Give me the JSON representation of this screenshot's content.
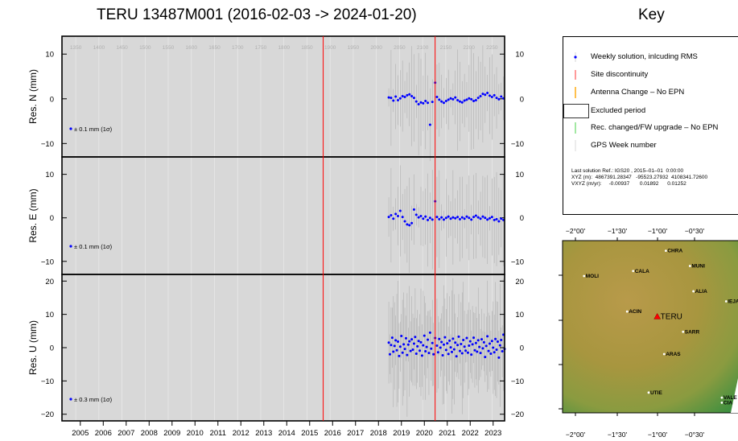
{
  "header": {
    "title": "TERU 13487M001 (2016-02-03 -> 2024-01-20)",
    "key_title": "Key"
  },
  "legend": {
    "items": [
      {
        "label": "Weekly solution, inlcuding RMS",
        "symbol": "dot",
        "color": "#0000ff"
      },
      {
        "label": "Site discontinuity",
        "symbol": "vline",
        "color": "#ff0000"
      },
      {
        "label": "Antenna Change – No EPN",
        "symbol": "vline",
        "color": "#ffa500"
      },
      {
        "label": "Excluded period",
        "symbol": "box",
        "color": "#000000"
      },
      {
        "label": "Rec. changed/FW upgrade – No EPN",
        "symbol": "vline",
        "color": "#33cc33"
      },
      {
        "label": "GPS Week number",
        "symbol": "vline",
        "color": "#c8c8c8"
      }
    ],
    "solution_line": "Last solution Ref.: IGS20 , 2015–01–01  0:00:00",
    "xyz_line": "XYZ (m):  4867391.28347   -95523.27932  4108341.72600",
    "vxyz_line": "VXYZ (m/yr):     -0.00937       0.01892      0.01252"
  },
  "chart_data": [
    {
      "type": "scatter",
      "title": "TERU 13487M001 (2016-02-03 -> 2024-01-20)",
      "xlabel": "",
      "years": [
        "2005",
        "2006",
        "2007",
        "2008",
        "2009",
        "2010",
        "2011",
        "2012",
        "2013",
        "2014",
        "2015",
        "2016",
        "2017",
        "2018",
        "2019",
        "2020",
        "2021",
        "2022",
        "2023"
      ],
      "xlim": [
        2004.7,
        2024.0
      ],
      "gps_weeks": [
        "1350",
        "1400",
        "1450",
        "1500",
        "1550",
        "1600",
        "1650",
        "1700",
        "1750",
        "1800",
        "1850",
        "1900",
        "1950",
        "2000",
        "2050",
        "2100",
        "2150",
        "2200",
        "2250"
      ],
      "discontinuities": [
        2016.09,
        2020.97
      ],
      "data_start": 2018.9,
      "data_end": 2024.05,
      "panels": [
        {
          "id": "N",
          "ylabel": "Res. N (mm)",
          "ylim": [
            -13,
            14
          ],
          "yticks": [
            "10",
            "0",
            "−10"
          ],
          "ytick_values": [
            10,
            0,
            -10
          ],
          "rms_label": "± 0.1 mm (1σ)",
          "points": [
            [
              2018.95,
              0.3
            ],
            [
              2019.05,
              0.2
            ],
            [
              2019.15,
              -0.4
            ],
            [
              2019.25,
              0.5
            ],
            [
              2019.35,
              -0.3
            ],
            [
              2019.45,
              0.1
            ],
            [
              2019.55,
              0.6
            ],
            [
              2019.65,
              0.4
            ],
            [
              2019.75,
              0.8
            ],
            [
              2019.85,
              1.0
            ],
            [
              2019.95,
              0.6
            ],
            [
              2020.05,
              0.2
            ],
            [
              2020.15,
              -0.6
            ],
            [
              2020.25,
              -1.2
            ],
            [
              2020.35,
              -0.8
            ],
            [
              2020.45,
              -1.0
            ],
            [
              2020.55,
              -0.5
            ],
            [
              2020.65,
              -0.9
            ],
            [
              2020.75,
              -5.8
            ],
            [
              2020.85,
              -0.7
            ],
            [
              2020.97,
              3.6
            ],
            [
              2021.05,
              0.4
            ],
            [
              2021.15,
              -0.2
            ],
            [
              2021.25,
              -0.6
            ],
            [
              2021.35,
              -0.9
            ],
            [
              2021.45,
              -0.5
            ],
            [
              2021.55,
              -0.2
            ],
            [
              2021.65,
              0.1
            ],
            [
              2021.75,
              -0.1
            ],
            [
              2021.85,
              0.3
            ],
            [
              2021.95,
              -0.3
            ],
            [
              2022.05,
              -0.6
            ],
            [
              2022.15,
              -0.8
            ],
            [
              2022.25,
              -0.4
            ],
            [
              2022.35,
              -0.2
            ],
            [
              2022.45,
              0.1
            ],
            [
              2022.55,
              -0.1
            ],
            [
              2022.65,
              -0.5
            ],
            [
              2022.75,
              -0.3
            ],
            [
              2022.85,
              0.2
            ],
            [
              2022.95,
              0.6
            ],
            [
              2023.05,
              1.1
            ],
            [
              2023.15,
              0.9
            ],
            [
              2023.25,
              1.3
            ],
            [
              2023.35,
              0.7
            ],
            [
              2023.45,
              0.4
            ],
            [
              2023.55,
              0.8
            ],
            [
              2023.65,
              0.2
            ],
            [
              2023.75,
              -0.1
            ],
            [
              2023.85,
              0.5
            ],
            [
              2023.95,
              0.1
            ]
          ]
        },
        {
          "id": "E",
          "ylabel": "Res. E (mm)",
          "ylim": [
            -13,
            14
          ],
          "yticks": [
            "10",
            "0",
            "−10"
          ],
          "ytick_values": [
            10,
            0,
            -10
          ],
          "rms_label": "± 0.1 mm (1σ)",
          "points": [
            [
              2018.95,
              0.2
            ],
            [
              2019.05,
              0.6
            ],
            [
              2019.15,
              -0.2
            ],
            [
              2019.25,
              0.9
            ],
            [
              2019.35,
              0.4
            ],
            [
              2019.45,
              1.6
            ],
            [
              2019.55,
              0.2
            ],
            [
              2019.65,
              -0.8
            ],
            [
              2019.75,
              -1.5
            ],
            [
              2019.85,
              -1.7
            ],
            [
              2019.95,
              -1.2
            ],
            [
              2020.05,
              1.9
            ],
            [
              2020.15,
              0.7
            ],
            [
              2020.25,
              0.1
            ],
            [
              2020.35,
              0.4
            ],
            [
              2020.45,
              -0.2
            ],
            [
              2020.55,
              0.3
            ],
            [
              2020.65,
              -0.5
            ],
            [
              2020.75,
              0.0
            ],
            [
              2020.85,
              -0.4
            ],
            [
              2020.97,
              3.8
            ],
            [
              2021.05,
              0.2
            ],
            [
              2021.15,
              -0.3
            ],
            [
              2021.25,
              0.1
            ],
            [
              2021.35,
              -0.4
            ],
            [
              2021.45,
              0.0
            ],
            [
              2021.55,
              0.3
            ],
            [
              2021.65,
              -0.2
            ],
            [
              2021.75,
              0.1
            ],
            [
              2021.85,
              -0.1
            ],
            [
              2021.95,
              0.2
            ],
            [
              2022.05,
              -0.3
            ],
            [
              2022.15,
              0.1
            ],
            [
              2022.25,
              -0.2
            ],
            [
              2022.35,
              0.3
            ],
            [
              2022.45,
              0.0
            ],
            [
              2022.55,
              -0.4
            ],
            [
              2022.65,
              0.2
            ],
            [
              2022.75,
              0.5
            ],
            [
              2022.85,
              0.1
            ],
            [
              2022.95,
              -0.2
            ],
            [
              2023.05,
              0.3
            ],
            [
              2023.15,
              0.0
            ],
            [
              2023.25,
              -0.4
            ],
            [
              2023.35,
              -0.1
            ],
            [
              2023.45,
              0.2
            ],
            [
              2023.55,
              -0.5
            ],
            [
              2023.65,
              -0.3
            ],
            [
              2023.75,
              -0.8
            ],
            [
              2023.85,
              -0.2
            ],
            [
              2023.95,
              -0.5
            ]
          ]
        },
        {
          "id": "U",
          "ylabel": "Res. U (mm)",
          "ylim": [
            -22,
            22
          ],
          "yticks": [
            "20",
            "10",
            "0",
            "−10",
            "−20"
          ],
          "ytick_values": [
            20,
            10,
            0,
            -10,
            -20
          ],
          "rms_label": "± 0.3 mm (1σ)",
          "points": [
            [
              2018.95,
              1.5
            ],
            [
              2019.0,
              -2.0
            ],
            [
              2019.05,
              0.8
            ],
            [
              2019.1,
              3.0
            ],
            [
              2019.15,
              -1.2
            ],
            [
              2019.2,
              0.5
            ],
            [
              2019.25,
              2.2
            ],
            [
              2019.3,
              -0.8
            ],
            [
              2019.35,
              1.8
            ],
            [
              2019.4,
              -2.5
            ],
            [
              2019.45,
              0.3
            ],
            [
              2019.5,
              3.5
            ],
            [
              2019.55,
              -1.5
            ],
            [
              2019.6,
              1.0
            ],
            [
              2019.65,
              -0.4
            ],
            [
              2019.7,
              2.8
            ],
            [
              2019.75,
              -2.2
            ],
            [
              2019.8,
              0.9
            ],
            [
              2019.85,
              1.9
            ],
            [
              2019.9,
              -1.0
            ],
            [
              2019.95,
              2.5
            ],
            [
              2020.0,
              -0.6
            ],
            [
              2020.05,
              1.2
            ],
            [
              2020.1,
              3.2
            ],
            [
              2020.15,
              -1.8
            ],
            [
              2020.2,
              0.4
            ],
            [
              2020.25,
              2.0
            ],
            [
              2020.3,
              -0.9
            ],
            [
              2020.35,
              1.6
            ],
            [
              2020.4,
              -2.4
            ],
            [
              2020.45,
              0.7
            ],
            [
              2020.5,
              3.6
            ],
            [
              2020.55,
              -1.1
            ],
            [
              2020.6,
              0.2
            ],
            [
              2020.65,
              2.4
            ],
            [
              2020.7,
              -1.6
            ],
            [
              2020.75,
              4.5
            ],
            [
              2020.8,
              -0.3
            ],
            [
              2020.85,
              1.4
            ],
            [
              2020.9,
              -2.0
            ],
            [
              2020.97,
              2.9
            ],
            [
              2021.05,
              0.6
            ],
            [
              2021.1,
              -1.4
            ],
            [
              2021.15,
              2.6
            ],
            [
              2021.2,
              0.0
            ],
            [
              2021.25,
              1.7
            ],
            [
              2021.3,
              -2.3
            ],
            [
              2021.35,
              0.9
            ],
            [
              2021.4,
              3.1
            ],
            [
              2021.45,
              -0.7
            ],
            [
              2021.5,
              1.3
            ],
            [
              2021.55,
              -1.9
            ],
            [
              2021.6,
              2.1
            ],
            [
              2021.65,
              0.1
            ],
            [
              2021.7,
              -1.3
            ],
            [
              2021.75,
              2.7
            ],
            [
              2021.8,
              -0.5
            ],
            [
              2021.85,
              1.5
            ],
            [
              2021.9,
              -2.6
            ],
            [
              2021.95,
              0.8
            ],
            [
              2022.0,
              3.3
            ],
            [
              2022.05,
              -1.0
            ],
            [
              2022.1,
              1.1
            ],
            [
              2022.15,
              -1.7
            ],
            [
              2022.2,
              2.3
            ],
            [
              2022.25,
              0.3
            ],
            [
              2022.3,
              -0.9
            ],
            [
              2022.35,
              2.9
            ],
            [
              2022.4,
              -1.5
            ],
            [
              2022.45,
              0.6
            ],
            [
              2022.5,
              1.9
            ],
            [
              2022.55,
              -2.1
            ],
            [
              2022.6,
              1.0
            ],
            [
              2022.65,
              3.0
            ],
            [
              2022.7,
              -0.8
            ],
            [
              2022.75,
              1.4
            ],
            [
              2022.8,
              -1.2
            ],
            [
              2022.85,
              2.2
            ],
            [
              2022.9,
              0.2
            ],
            [
              2022.95,
              -1.6
            ],
            [
              2023.0,
              2.5
            ],
            [
              2023.05,
              -0.2
            ],
            [
              2023.1,
              1.6
            ],
            [
              2023.15,
              -2.8
            ],
            [
              2023.2,
              0.5
            ],
            [
              2023.25,
              3.4
            ],
            [
              2023.3,
              -1.0
            ],
            [
              2023.35,
              1.2
            ],
            [
              2023.4,
              -1.8
            ],
            [
              2023.45,
              2.0
            ],
            [
              2023.5,
              0.0
            ],
            [
              2023.55,
              -1.4
            ],
            [
              2023.6,
              2.6
            ],
            [
              2023.65,
              -0.6
            ],
            [
              2023.7,
              1.8
            ],
            [
              2023.75,
              -3.0
            ],
            [
              2023.8,
              0.7
            ],
            [
              2023.85,
              2.3
            ],
            [
              2023.9,
              -1.1
            ],
            [
              2023.95,
              3.9
            ],
            [
              2024.0,
              -0.4
            ]
          ]
        }
      ]
    },
    {
      "type": "map",
      "lon_labels_top": [
        "−2°00'",
        "−1°30'",
        "−1°00'",
        "−0°30'"
      ],
      "lon_labels_bottom": [
        "−2°00'",
        "−1°30'",
        "−1°00'",
        "−0°30'"
      ],
      "stations": [
        {
          "name": "CHRA",
          "lon": -1.0,
          "lat": 41.0
        },
        {
          "name": "MUNI",
          "lon": -0.72,
          "lat": 40.85
        },
        {
          "name": "MOLI",
          "lon": -1.95,
          "lat": 40.75
        },
        {
          "name": "CALA",
          "lon": -1.38,
          "lat": 40.8
        },
        {
          "name": "ALIA",
          "lon": -0.68,
          "lat": 40.6
        },
        {
          "name": "IEJA",
          "lon": -0.3,
          "lat": 40.5
        },
        {
          "name": "ACIN",
          "lon": -1.45,
          "lat": 40.4
        },
        {
          "name": "TERU",
          "lon": -1.1,
          "lat": 40.35,
          "highlight": true
        },
        {
          "name": "SARR",
          "lon": -0.8,
          "lat": 40.2
        },
        {
          "name": "ARAS",
          "lon": -1.02,
          "lat": 39.98
        },
        {
          "name": "UTIE",
          "lon": -1.2,
          "lat": 39.6
        },
        {
          "name": "VALE",
          "lon": -0.35,
          "lat": 39.55
        },
        {
          "name": "CIA",
          "lon": -0.35,
          "lat": 39.5
        }
      ]
    }
  ]
}
